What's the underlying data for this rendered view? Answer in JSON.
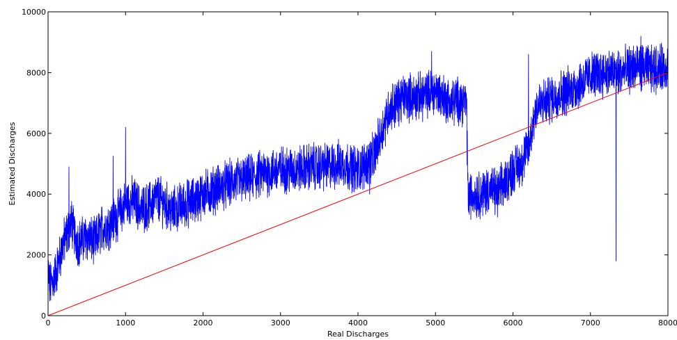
{
  "chart_data": {
    "type": "line",
    "title": "",
    "xlabel": "Real Discharges",
    "ylabel": "Estimated Discharges",
    "xlim": [
      0,
      8000
    ],
    "ylim": [
      0,
      10000
    ],
    "xticks": [
      0,
      1000,
      2000,
      3000,
      4000,
      5000,
      6000,
      7000,
      8000
    ],
    "yticks": [
      0,
      2000,
      4000,
      6000,
      8000,
      10000
    ],
    "grid": false,
    "legend": "none",
    "series": [
      {
        "color": "#0000ff",
        "style": "noisy-line",
        "x": [
          0,
          20,
          50,
          100,
          150,
          200,
          250,
          300,
          350,
          400,
          500,
          600,
          700,
          800,
          900,
          1000,
          1100,
          1200,
          1300,
          1400,
          1500,
          1600,
          1700,
          1800,
          1900,
          2000,
          2200,
          2400,
          2600,
          2800,
          3000,
          3200,
          3400,
          3600,
          3800,
          4000,
          4200,
          4300,
          4400,
          4600,
          4800,
          5000,
          5200,
          5300,
          5400,
          5420,
          5500,
          5600,
          5700,
          5800,
          5900,
          6000,
          6100,
          6200,
          6300,
          6400,
          6600,
          6800,
          7000,
          7200,
          7400,
          7600,
          7800,
          8000
        ],
        "values": [
          1500,
          1000,
          1100,
          1400,
          1900,
          2400,
          2700,
          3100,
          2600,
          2400,
          2600,
          2400,
          2900,
          3000,
          3300,
          3700,
          3800,
          3500,
          3600,
          3900,
          3700,
          3400,
          3600,
          3700,
          3800,
          4000,
          4200,
          4400,
          4500,
          4700,
          4800,
          4800,
          4900,
          4900,
          5000,
          4800,
          5200,
          6000,
          6800,
          7200,
          7200,
          7400,
          7000,
          7100,
          7000,
          3900,
          4000,
          4000,
          4200,
          4000,
          4400,
          4800,
          5000,
          5500,
          6900,
          7000,
          7300,
          7500,
          7900,
          8000,
          8000,
          8200,
          8100,
          8200
        ],
        "spikes": [
          [
            0,
            1800
          ],
          [
            270,
            4900
          ],
          [
            840,
            5250
          ],
          [
            1000,
            6200
          ],
          [
            4150,
            4000
          ],
          [
            4950,
            8700
          ],
          [
            6200,
            8600
          ],
          [
            7330,
            1800
          ],
          [
            7650,
            9200
          ]
        ]
      },
      {
        "color": "#ff0000",
        "style": "line",
        "x": [
          0,
          8000
        ],
        "values": [
          0,
          8000
        ]
      }
    ]
  }
}
